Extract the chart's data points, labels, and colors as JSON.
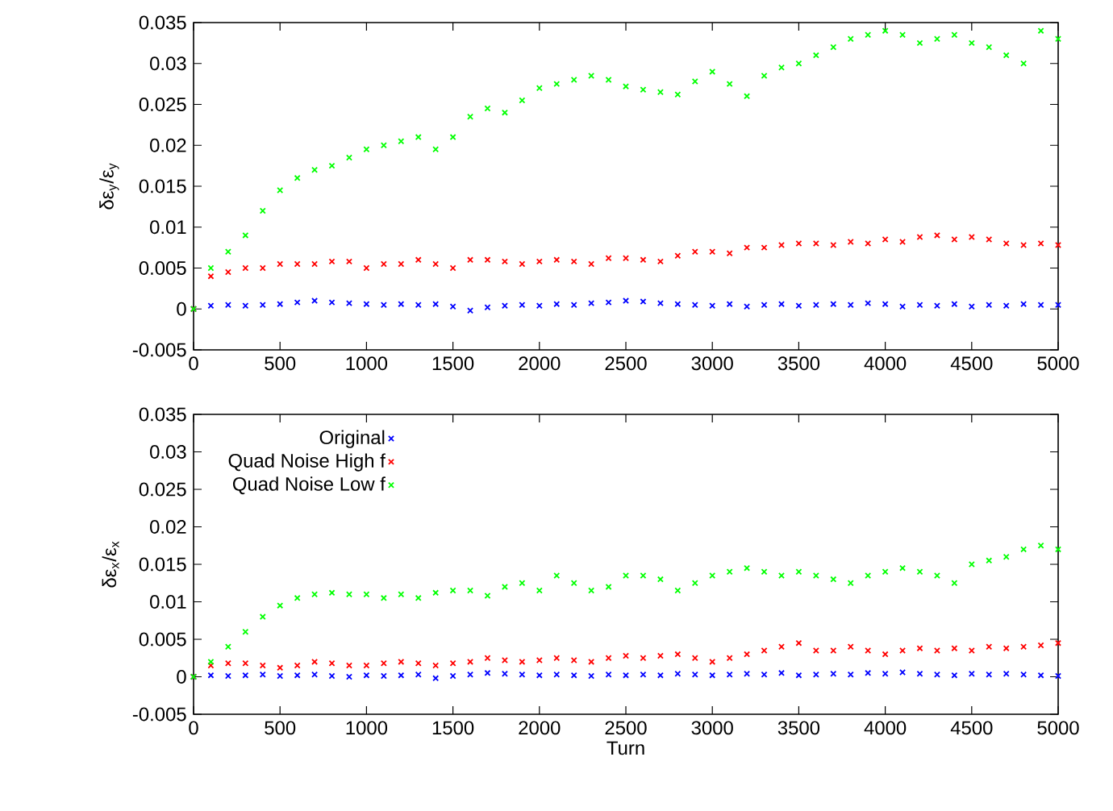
{
  "chart_data": [
    {
      "type": "scatter",
      "ylabel": "δε$_{y}$/ε$_{y}$",
      "xlim": [
        0,
        5000
      ],
      "ylim": [
        -0.005,
        0.035
      ],
      "xticks": [
        0,
        500,
        1000,
        1500,
        2000,
        2500,
        3000,
        3500,
        4000,
        4500,
        5000
      ],
      "yticks": [
        -0.005,
        0,
        0.005,
        0.01,
        0.015,
        0.02,
        0.025,
        0.03,
        0.035
      ],
      "x": [
        0,
        100,
        200,
        300,
        400,
        500,
        600,
        700,
        800,
        900,
        1000,
        1100,
        1200,
        1300,
        1400,
        1500,
        1600,
        1700,
        1800,
        1900,
        2000,
        2100,
        2200,
        2300,
        2400,
        2500,
        2600,
        2700,
        2800,
        2900,
        3000,
        3100,
        3200,
        3300,
        3400,
        3500,
        3600,
        3700,
        3800,
        3900,
        4000,
        4100,
        4200,
        4300,
        4400,
        4500,
        4600,
        4700,
        4800,
        4900,
        5000
      ],
      "series": [
        {
          "color": "#0000ff",
          "marker": "cross",
          "values": [
            0,
            0.0004,
            0.0005,
            0.0004,
            0.0005,
            0.0006,
            0.0008,
            0.001,
            0.0008,
            0.0007,
            0.0006,
            0.0005,
            0.0006,
            0.0005,
            0.0006,
            0.0003,
            -0.0002,
            0.0002,
            0.0004,
            0.0005,
            0.0004,
            0.0006,
            0.0005,
            0.0007,
            0.0008,
            0.001,
            0.0009,
            0.0007,
            0.0006,
            0.0005,
            0.0004,
            0.0006,
            0.0003,
            0.0005,
            0.0006,
            0.0004,
            0.0005,
            0.0006,
            0.0005,
            0.0007,
            0.0006,
            0.0003,
            0.0005,
            0.0004,
            0.0006,
            0.0003,
            0.0005,
            0.0004,
            0.0006,
            0.0005,
            0.0005
          ]
        },
        {
          "color": "#ff0000",
          "marker": "cross",
          "values": [
            0,
            0.004,
            0.0045,
            0.005,
            0.005,
            0.0055,
            0.0055,
            0.0055,
            0.0058,
            0.0058,
            0.005,
            0.0055,
            0.0055,
            0.006,
            0.0055,
            0.005,
            0.006,
            0.006,
            0.0058,
            0.0055,
            0.0058,
            0.006,
            0.0058,
            0.0055,
            0.0062,
            0.0062,
            0.006,
            0.0058,
            0.0065,
            0.007,
            0.007,
            0.0068,
            0.0075,
            0.0075,
            0.0078,
            0.008,
            0.008,
            0.0078,
            0.0082,
            0.008,
            0.0085,
            0.0082,
            0.0088,
            0.009,
            0.0085,
            0.0088,
            0.0085,
            0.008,
            0.0078,
            0.008,
            0.0078
          ]
        },
        {
          "color": "#00ff00",
          "marker": "cross",
          "values": [
            0,
            0.005,
            0.007,
            0.009,
            0.012,
            0.0145,
            0.016,
            0.017,
            0.0175,
            0.0185,
            0.0195,
            0.02,
            0.0205,
            0.021,
            0.0195,
            0.021,
            0.0235,
            0.0245,
            0.024,
            0.0255,
            0.027,
            0.0275,
            0.028,
            0.0285,
            0.028,
            0.0272,
            0.0268,
            0.0265,
            0.0262,
            0.0278,
            0.029,
            0.0275,
            0.026,
            0.0285,
            0.0295,
            0.03,
            0.031,
            0.032,
            0.033,
            0.0335,
            0.034,
            0.0335,
            0.0325,
            0.033,
            0.0335,
            0.0325,
            0.032,
            0.031,
            0.03,
            0.034,
            0.033
          ]
        }
      ]
    },
    {
      "type": "scatter",
      "xlabel": "Turn",
      "ylabel": "δε$_{x}$/ε$_{x}$",
      "legend": "top left",
      "xlim": [
        0,
        5000
      ],
      "ylim": [
        -0.005,
        0.035
      ],
      "xticks": [
        0,
        500,
        1000,
        1500,
        2000,
        2500,
        3000,
        3500,
        4000,
        4500,
        5000
      ],
      "yticks": [
        -0.005,
        0,
        0.005,
        0.01,
        0.015,
        0.02,
        0.025,
        0.03,
        0.035
      ],
      "x": [
        0,
        100,
        200,
        300,
        400,
        500,
        600,
        700,
        800,
        900,
        1000,
        1100,
        1200,
        1300,
        1400,
        1500,
        1600,
        1700,
        1800,
        1900,
        2000,
        2100,
        2200,
        2300,
        2400,
        2500,
        2600,
        2700,
        2800,
        2900,
        3000,
        3100,
        3200,
        3300,
        3400,
        3500,
        3600,
        3700,
        3800,
        3900,
        4000,
        4100,
        4200,
        4300,
        4400,
        4500,
        4600,
        4700,
        4800,
        4900,
        5000
      ],
      "series": [
        {
          "name": "Original",
          "color": "#0000ff",
          "marker": "cross",
          "values": [
            0,
            0.0002,
            0.0001,
            0.0002,
            0.0003,
            0.0001,
            0.0002,
            0.0003,
            0.0001,
            0,
            0.0002,
            0.0001,
            0.0002,
            0.0003,
            -0.0002,
            0.0001,
            0.0003,
            0.0005,
            0.0004,
            0.0003,
            0.0002,
            0.0003,
            0.0002,
            0.0001,
            0.0003,
            0.0002,
            0.0003,
            0.0002,
            0.0004,
            0.0003,
            0.0002,
            0.0003,
            0.0004,
            0.0003,
            0.0005,
            0.0002,
            0.0003,
            0.0004,
            0.0003,
            0.0005,
            0.0004,
            0.0006,
            0.0004,
            0.0003,
            0.0002,
            0.0004,
            0.0003,
            0.0004,
            0.0003,
            0.0002,
            0.0001
          ]
        },
        {
          "name": "Quad Noise High f",
          "color": "#ff0000",
          "marker": "cross",
          "values": [
            0,
            0.0015,
            0.0018,
            0.0018,
            0.0015,
            0.0012,
            0.0015,
            0.002,
            0.0018,
            0.0015,
            0.0015,
            0.0018,
            0.002,
            0.0018,
            0.0015,
            0.0018,
            0.002,
            0.0025,
            0.0022,
            0.002,
            0.0022,
            0.0025,
            0.0022,
            0.002,
            0.0025,
            0.0028,
            0.0025,
            0.0028,
            0.003,
            0.0025,
            0.002,
            0.0025,
            0.003,
            0.0035,
            0.004,
            0.0045,
            0.0035,
            0.0035,
            0.004,
            0.0035,
            0.003,
            0.0035,
            0.0038,
            0.0035,
            0.0038,
            0.0035,
            0.004,
            0.0038,
            0.004,
            0.0042,
            0.0045
          ]
        },
        {
          "name": "Quad Noise Low f",
          "color": "#00ff00",
          "marker": "cross",
          "values": [
            0,
            0.002,
            0.004,
            0.006,
            0.008,
            0.0095,
            0.0105,
            0.011,
            0.0112,
            0.011,
            0.011,
            0.0105,
            0.011,
            0.0105,
            0.0112,
            0.0115,
            0.0115,
            0.0108,
            0.012,
            0.0125,
            0.0115,
            0.0135,
            0.0125,
            0.0115,
            0.012,
            0.0135,
            0.0135,
            0.013,
            0.0115,
            0.0125,
            0.0135,
            0.014,
            0.0145,
            0.014,
            0.0135,
            0.014,
            0.0135,
            0.013,
            0.0125,
            0.0135,
            0.014,
            0.0145,
            0.014,
            0.0135,
            0.0125,
            0.015,
            0.0155,
            0.016,
            0.017,
            0.0175,
            0.017
          ]
        }
      ]
    }
  ]
}
